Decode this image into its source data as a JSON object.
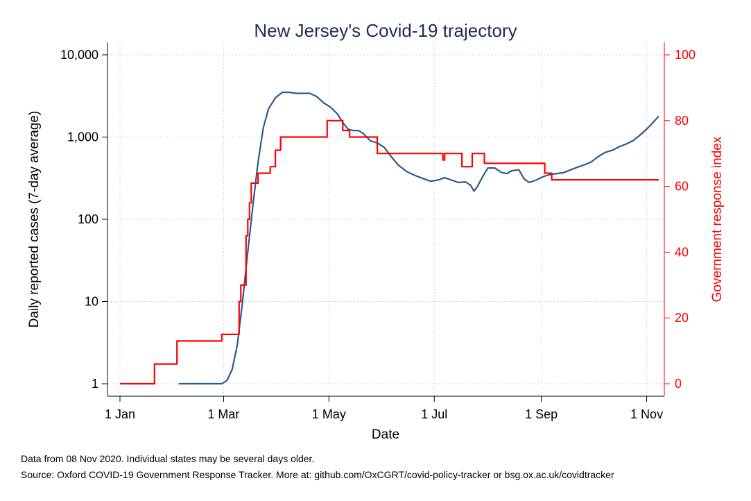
{
  "chart_data": {
    "type": "line",
    "title": "New Jersey's Covid-19 trajectory",
    "xlabel": "Date",
    "ylabel": "Daily reported cases (7-day average)",
    "y2label": "Government response index",
    "x_tick_labels": [
      "1 Jan",
      "1 Mar",
      "1 May",
      "1 Jul",
      "1 Sep",
      "1 Nov"
    ],
    "x_tick_dates": [
      "2020-01-01",
      "2020-03-01",
      "2020-05-01",
      "2020-07-01",
      "2020-09-01",
      "2020-11-01"
    ],
    "xlim": [
      "2020-01-01",
      "2020-11-08"
    ],
    "y_scale": "log",
    "ylim": [
      1,
      10000
    ],
    "y_ticks": [
      1,
      10,
      100,
      1000,
      10000
    ],
    "y_tick_labels": [
      "1",
      "10",
      "100",
      "1,000",
      "10,000"
    ],
    "y2lim": [
      0,
      100
    ],
    "y2_ticks": [
      0,
      20,
      40,
      60,
      80,
      100
    ],
    "y2_tick_labels": [
      "0",
      "20",
      "40",
      "60",
      "80",
      "100"
    ],
    "grid": true,
    "series": [
      {
        "axis": "left",
        "color": "#2a5a8a",
        "interpolation": "linear",
        "points": [
          [
            "2020-02-04",
            1
          ],
          [
            "2020-02-29",
            1
          ],
          [
            "2020-03-03",
            1.1
          ],
          [
            "2020-03-06",
            1.5
          ],
          [
            "2020-03-09",
            3
          ],
          [
            "2020-03-12",
            10
          ],
          [
            "2020-03-15",
            40
          ],
          [
            "2020-03-18",
            150
          ],
          [
            "2020-03-21",
            500
          ],
          [
            "2020-03-24",
            1300
          ],
          [
            "2020-03-27",
            2200
          ],
          [
            "2020-03-31",
            3000
          ],
          [
            "2020-04-04",
            3500
          ],
          [
            "2020-04-08",
            3500
          ],
          [
            "2020-04-12",
            3400
          ],
          [
            "2020-04-16",
            3400
          ],
          [
            "2020-04-20",
            3400
          ],
          [
            "2020-04-24",
            3100
          ],
          [
            "2020-04-28",
            2600
          ],
          [
            "2020-05-02",
            2300
          ],
          [
            "2020-05-06",
            1900
          ],
          [
            "2020-05-09",
            1500
          ],
          [
            "2020-05-12",
            1250
          ],
          [
            "2020-05-15",
            1200
          ],
          [
            "2020-05-18",
            1200
          ],
          [
            "2020-05-21",
            1100
          ],
          [
            "2020-05-25",
            900
          ],
          [
            "2020-05-29",
            850
          ],
          [
            "2020-06-02",
            750
          ],
          [
            "2020-06-06",
            580
          ],
          [
            "2020-06-10",
            460
          ],
          [
            "2020-06-15",
            380
          ],
          [
            "2020-06-20",
            340
          ],
          [
            "2020-06-25",
            310
          ],
          [
            "2020-06-29",
            290
          ],
          [
            "2020-07-03",
            300
          ],
          [
            "2020-07-07",
            320
          ],
          [
            "2020-07-11",
            300
          ],
          [
            "2020-07-15",
            280
          ],
          [
            "2020-07-19",
            285
          ],
          [
            "2020-07-22",
            260
          ],
          [
            "2020-07-24",
            220
          ],
          [
            "2020-07-26",
            250
          ],
          [
            "2020-07-29",
            330
          ],
          [
            "2020-08-01",
            420
          ],
          [
            "2020-08-05",
            420
          ],
          [
            "2020-08-09",
            370
          ],
          [
            "2020-08-12",
            360
          ],
          [
            "2020-08-15",
            390
          ],
          [
            "2020-08-19",
            400
          ],
          [
            "2020-08-22",
            310
          ],
          [
            "2020-08-25",
            280
          ],
          [
            "2020-08-29",
            300
          ],
          [
            "2020-09-02",
            330
          ],
          [
            "2020-09-06",
            350
          ],
          [
            "2020-09-10",
            360
          ],
          [
            "2020-09-14",
            370
          ],
          [
            "2020-09-18",
            400
          ],
          [
            "2020-09-22",
            430
          ],
          [
            "2020-09-26",
            460
          ],
          [
            "2020-09-30",
            500
          ],
          [
            "2020-10-04",
            580
          ],
          [
            "2020-10-08",
            650
          ],
          [
            "2020-10-12",
            690
          ],
          [
            "2020-10-16",
            760
          ],
          [
            "2020-10-20",
            820
          ],
          [
            "2020-10-24",
            900
          ],
          [
            "2020-10-28",
            1050
          ],
          [
            "2020-11-01",
            1250
          ],
          [
            "2020-11-04",
            1450
          ],
          [
            "2020-11-08",
            1800
          ]
        ]
      },
      {
        "axis": "right",
        "color": "#ff0000",
        "interpolation": "step",
        "points": [
          [
            "2020-01-01",
            0
          ],
          [
            "2020-01-21",
            6
          ],
          [
            "2020-02-03",
            13
          ],
          [
            "2020-02-29",
            15
          ],
          [
            "2020-03-10",
            25
          ],
          [
            "2020-03-11",
            30
          ],
          [
            "2020-03-14",
            45
          ],
          [
            "2020-03-15",
            50
          ],
          [
            "2020-03-16",
            55
          ],
          [
            "2020-03-17",
            61
          ],
          [
            "2020-03-21",
            64
          ],
          [
            "2020-03-28",
            66
          ],
          [
            "2020-03-31",
            71
          ],
          [
            "2020-04-03",
            75
          ],
          [
            "2020-04-30",
            80
          ],
          [
            "2020-05-09",
            77
          ],
          [
            "2020-05-13",
            75
          ],
          [
            "2020-05-29",
            70
          ],
          [
            "2020-07-06",
            68
          ],
          [
            "2020-07-07",
            70
          ],
          [
            "2020-07-17",
            66
          ],
          [
            "2020-07-23",
            70
          ],
          [
            "2020-07-30",
            67
          ],
          [
            "2020-09-03",
            64
          ],
          [
            "2020-09-07",
            62
          ],
          [
            "2020-11-08",
            62
          ]
        ]
      }
    ],
    "notes": [
      "Data from 08 Nov 2020. Individual states may be several days older.",
      "Source: Oxford COVID-19 Government Response Tracker. More at: github.com/OxCGRT/covid-policy-tracker or bsg.ox.ac.uk/covidtracker"
    ]
  }
}
